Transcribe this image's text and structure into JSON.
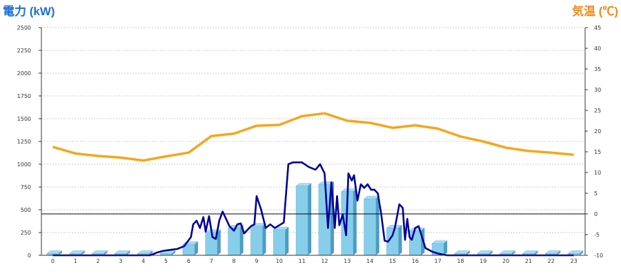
{
  "chart_data": {
    "type": "bar",
    "title_left": "電力 (kW)",
    "title_right": "気温 (℃)",
    "xlabel": "",
    "x": [
      0,
      1,
      2,
      3,
      4,
      5,
      6,
      7,
      8,
      9,
      10,
      11,
      12,
      13,
      14,
      15,
      16,
      17,
      18,
      19,
      20,
      21,
      22,
      23
    ],
    "y_left": {
      "min": 0,
      "max": 2500,
      "step": 250
    },
    "y_right": {
      "min": -10,
      "max": 45,
      "step": 5
    },
    "grid": true,
    "reference_line": {
      "axis": "right",
      "value": 0
    },
    "series": [
      {
        "kind": "bar",
        "axis": "left",
        "color": "#87ceeb",
        "values": [
          20,
          20,
          20,
          20,
          20,
          20,
          120,
          250,
          300,
          320,
          280,
          760,
          780,
          700,
          620,
          300,
          270,
          130,
          20,
          20,
          20,
          20,
          20,
          20
        ]
      },
      {
        "kind": "line",
        "axis": "left",
        "color": "#000099",
        "points": [
          [
            0,
            0
          ],
          [
            1,
            0
          ],
          [
            2,
            0
          ],
          [
            3,
            0
          ],
          [
            4,
            0
          ],
          [
            4.3,
            0
          ],
          [
            4.6,
            30
          ],
          [
            4.9,
            50
          ],
          [
            5.2,
            60
          ],
          [
            5.5,
            70
          ],
          [
            5.8,
            100
          ],
          [
            6.1,
            200
          ],
          [
            6.2,
            340
          ],
          [
            6.35,
            380
          ],
          [
            6.5,
            300
          ],
          [
            6.65,
            420
          ],
          [
            6.75,
            260
          ],
          [
            6.9,
            430
          ],
          [
            7.05,
            200
          ],
          [
            7.2,
            180
          ],
          [
            7.35,
            380
          ],
          [
            7.5,
            480
          ],
          [
            7.65,
            400
          ],
          [
            7.8,
            320
          ],
          [
            8.0,
            270
          ],
          [
            8.15,
            340
          ],
          [
            8.3,
            350
          ],
          [
            8.45,
            240
          ],
          [
            8.6,
            280
          ],
          [
            8.75,
            320
          ],
          [
            8.9,
            340
          ],
          [
            9.0,
            650
          ],
          [
            9.2,
            500
          ],
          [
            9.4,
            300
          ],
          [
            9.6,
            340
          ],
          [
            9.8,
            300
          ],
          [
            10.0,
            330
          ],
          [
            10.2,
            360
          ],
          [
            10.4,
            1000
          ],
          [
            10.6,
            1020
          ],
          [
            11.0,
            1020
          ],
          [
            11.3,
            970
          ],
          [
            11.6,
            940
          ],
          [
            11.8,
            1000
          ],
          [
            12.0,
            900
          ],
          [
            12.15,
            300
          ],
          [
            12.3,
            800
          ],
          [
            12.45,
            300
          ],
          [
            12.55,
            650
          ],
          [
            12.65,
            330
          ],
          [
            12.8,
            450
          ],
          [
            12.95,
            220
          ],
          [
            13.05,
            900
          ],
          [
            13.2,
            820
          ],
          [
            13.3,
            880
          ],
          [
            13.45,
            600
          ],
          [
            13.6,
            780
          ],
          [
            13.75,
            740
          ],
          [
            13.9,
            780
          ],
          [
            14.05,
            720
          ],
          [
            14.2,
            720
          ],
          [
            14.35,
            680
          ],
          [
            14.5,
            450
          ],
          [
            14.65,
            160
          ],
          [
            14.8,
            150
          ],
          [
            15.0,
            220
          ],
          [
            15.1,
            300
          ],
          [
            15.3,
            560
          ],
          [
            15.45,
            520
          ],
          [
            15.55,
            170
          ],
          [
            15.65,
            400
          ],
          [
            15.75,
            200
          ],
          [
            15.85,
            170
          ],
          [
            16.0,
            300
          ],
          [
            16.15,
            320
          ],
          [
            16.3,
            200
          ],
          [
            16.45,
            80
          ],
          [
            16.6,
            60
          ],
          [
            16.75,
            40
          ],
          [
            17.0,
            20
          ],
          [
            17.2,
            10
          ],
          [
            17.4,
            0
          ],
          [
            18,
            0
          ],
          [
            19,
            0
          ],
          [
            20,
            0
          ],
          [
            21,
            0
          ],
          [
            22,
            0
          ],
          [
            23,
            0
          ]
        ]
      },
      {
        "kind": "line",
        "axis": "right",
        "color": "#f7a51b",
        "values": [
          16.2,
          14.6,
          14.0,
          13.6,
          12.9,
          13.9,
          14.8,
          18.8,
          19.4,
          21.3,
          21.5,
          23.6,
          24.3,
          22.5,
          22.0,
          20.8,
          21.4,
          20.6,
          18.7,
          17.5,
          16.0,
          15.2,
          14.8,
          14.3
        ]
      }
    ]
  }
}
